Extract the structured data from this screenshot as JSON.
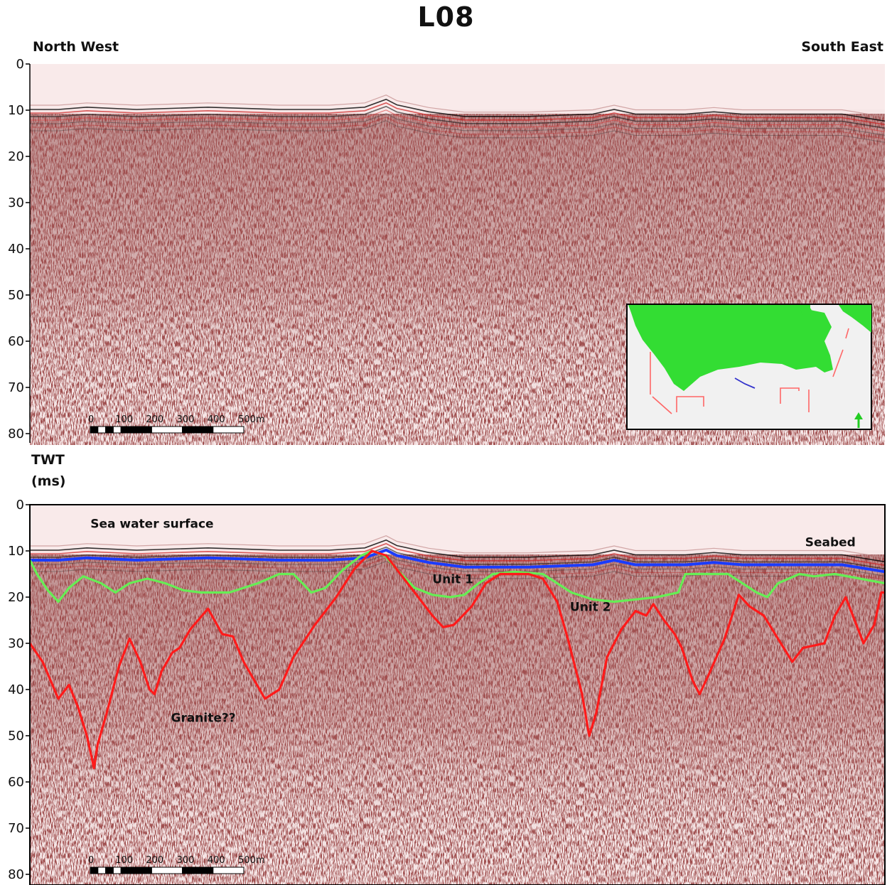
{
  "page": {
    "title": "L08",
    "left_direction": "North West",
    "right_direction": "South East",
    "axis_label_line1": "TWT",
    "axis_label_line2": "(ms)"
  },
  "colors": {
    "seabed": "#1a3cff",
    "unit_boundary": "#66ee55",
    "granite": "#ff1a1a",
    "land": "#33dd33",
    "track_lines": "#ff6666",
    "profile_track": "#3333cc",
    "north_arrow": "#22cc22"
  },
  "scale_bar": {
    "labels": [
      "0",
      "100",
      "200",
      "300",
      "400",
      "500m"
    ]
  },
  "chart_data": [
    {
      "type": "seismic-section",
      "name": "raw",
      "y_axis": {
        "ticks": [
          0,
          10,
          20,
          30,
          40,
          50,
          60,
          70,
          80
        ],
        "ylim": [
          0,
          82
        ],
        "inverted": true
      },
      "x_axis": {
        "distance_m": [
          0,
          100,
          200,
          300,
          400,
          500
        ]
      }
    },
    {
      "type": "line",
      "name": "interpreted",
      "y_axis": {
        "ticks": [
          0,
          10,
          20,
          30,
          40,
          50,
          60,
          70,
          80
        ],
        "ylim": [
          0,
          82
        ],
        "inverted": true
      },
      "x_axis": {
        "distance_m": [
          0,
          100,
          200,
          300,
          400,
          500
        ],
        "xlim": [
          0,
          1200
        ]
      },
      "annotations": [
        {
          "text": "Sea water surface",
          "x": 85,
          "y": 5
        },
        {
          "text": "Seabed",
          "x": 1088,
          "y": 9
        },
        {
          "text": "Unit 1",
          "x": 565,
          "y": 17
        },
        {
          "text": "Unit 2",
          "x": 758,
          "y": 23
        },
        {
          "text": "Granite??",
          "x": 198,
          "y": 47
        }
      ],
      "series": [
        {
          "key": "seabed",
          "points": [
            [
              0,
              12
            ],
            [
              40,
              12
            ],
            [
              80,
              11.5
            ],
            [
              150,
              12
            ],
            [
              250,
              11.5
            ],
            [
              350,
              12
            ],
            [
              420,
              12
            ],
            [
              470,
              11.5
            ],
            [
              500,
              9.8
            ],
            [
              515,
              11
            ],
            [
              560,
              12.5
            ],
            [
              610,
              13.5
            ],
            [
              700,
              13.5
            ],
            [
              790,
              13
            ],
            [
              820,
              12
            ],
            [
              850,
              13
            ],
            [
              920,
              13
            ],
            [
              960,
              12.5
            ],
            [
              1000,
              13
            ],
            [
              1080,
              13
            ],
            [
              1140,
              13
            ],
            [
              1200,
              14.5
            ]
          ]
        },
        {
          "key": "unit_boundary",
          "points": [
            [
              0,
              12
            ],
            [
              10,
              15
            ],
            [
              25,
              18.5
            ],
            [
              40,
              21
            ],
            [
              55,
              18
            ],
            [
              75,
              15.5
            ],
            [
              100,
              17
            ],
            [
              120,
              19
            ],
            [
              140,
              17
            ],
            [
              165,
              16
            ],
            [
              190,
              17
            ],
            [
              215,
              18.5
            ],
            [
              240,
              19
            ],
            [
              280,
              19
            ],
            [
              320,
              17
            ],
            [
              350,
              15
            ],
            [
              370,
              15
            ],
            [
              395,
              19
            ],
            [
              415,
              18
            ],
            [
              440,
              14
            ],
            [
              465,
              11
            ],
            [
              480,
              10
            ],
            [
              498,
              11
            ],
            [
              515,
              14
            ],
            [
              540,
              18
            ],
            [
              565,
              19.5
            ],
            [
              590,
              20
            ],
            [
              610,
              19.5
            ],
            [
              630,
              17
            ],
            [
              650,
              15
            ],
            [
              680,
              14.5
            ],
            [
              720,
              15
            ],
            [
              760,
              19
            ],
            [
              790,
              20.5
            ],
            [
              820,
              21
            ],
            [
              850,
              20.5
            ],
            [
              880,
              20
            ],
            [
              910,
              19
            ],
            [
              920,
              15
            ],
            [
              950,
              15
            ],
            [
              980,
              15
            ],
            [
              1000,
              17
            ],
            [
              1020,
              19
            ],
            [
              1035,
              20
            ],
            [
              1050,
              17
            ],
            [
              1080,
              15
            ],
            [
              1100,
              15.5
            ],
            [
              1130,
              15
            ],
            [
              1165,
              16
            ],
            [
              1200,
              17
            ]
          ]
        },
        {
          "key": "granite",
          "points": [
            [
              0,
              30
            ],
            [
              18,
              34
            ],
            [
              40,
              42
            ],
            [
              55,
              39
            ],
            [
              68,
              44
            ],
            [
              80,
              50
            ],
            [
              90,
              57
            ],
            [
              95,
              52
            ],
            [
              108,
              45
            ],
            [
              125,
              35
            ],
            [
              140,
              29
            ],
            [
              155,
              34
            ],
            [
              168,
              40
            ],
            [
              175,
              41
            ],
            [
              185,
              36
            ],
            [
              200,
              32
            ],
            [
              210,
              31
            ],
            [
              225,
              27
            ],
            [
              250,
              22.5
            ],
            [
              270,
              28
            ],
            [
              285,
              28.5
            ],
            [
              300,
              34
            ],
            [
              315,
              38
            ],
            [
              330,
              42
            ],
            [
              350,
              40
            ],
            [
              370,
              33
            ],
            [
              400,
              26
            ],
            [
              430,
              20
            ],
            [
              455,
              14
            ],
            [
              480,
              10
            ],
            [
              500,
              11
            ],
            [
              520,
              15
            ],
            [
              545,
              20
            ],
            [
              565,
              24
            ],
            [
              580,
              26.5
            ],
            [
              595,
              26
            ],
            [
              620,
              22
            ],
            [
              640,
              17
            ],
            [
              660,
              15
            ],
            [
              700,
              15
            ],
            [
              720,
              16
            ],
            [
              740,
              21
            ],
            [
              755,
              29
            ],
            [
              765,
              35
            ],
            [
              775,
              41
            ],
            [
              785,
              50
            ],
            [
              795,
              45
            ],
            [
              810,
              33
            ],
            [
              830,
              27
            ],
            [
              850,
              23
            ],
            [
              865,
              24
            ],
            [
              875,
              21.5
            ],
            [
              890,
              25
            ],
            [
              905,
              28
            ],
            [
              915,
              31
            ],
            [
              930,
              38
            ],
            [
              940,
              41
            ],
            [
              955,
              36
            ],
            [
              975,
              29
            ],
            [
              995,
              19.5
            ],
            [
              1010,
              22
            ],
            [
              1030,
              24
            ],
            [
              1050,
              29
            ],
            [
              1070,
              34
            ],
            [
              1085,
              31
            ],
            [
              1115,
              30
            ],
            [
              1130,
              24
            ],
            [
              1145,
              20
            ],
            [
              1160,
              26
            ],
            [
              1170,
              30
            ],
            [
              1185,
              26
            ],
            [
              1195,
              19
            ],
            [
              1200,
              19
            ]
          ]
        }
      ]
    }
  ]
}
